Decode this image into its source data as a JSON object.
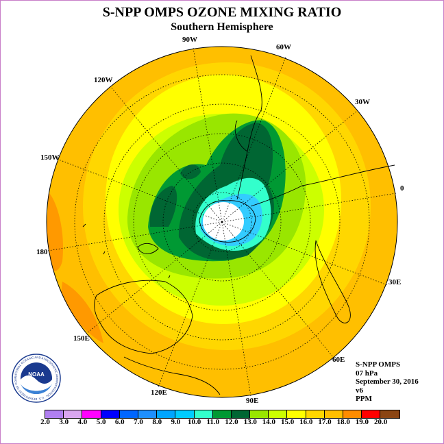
{
  "header": {
    "title": "S-NPP OMPS OZONE MIXING RATIO",
    "subtitle": "Southern Hemisphere"
  },
  "map": {
    "longitude_labels": [
      "0",
      "30E",
      "60E",
      "90E",
      "120E",
      "150E",
      "180",
      "150W",
      "120W",
      "90W",
      "60W",
      "30W"
    ],
    "fill_levels": [
      "#ffbf00",
      "#ffd700",
      "#ffff00",
      "#ccff00",
      "#99e600",
      "#009933",
      "#006633",
      "#33ffcc",
      "#33ccff",
      "#0099ff",
      "#ffffff"
    ]
  },
  "info": {
    "instrument": "S-NPP OMPS",
    "level": "07 hPa",
    "date": "September 30, 2016",
    "version": "v6",
    "units": "PPM"
  },
  "colorbar": {
    "labels": [
      "2.0",
      "3.0",
      "4.0",
      "5.0",
      "6.0",
      "7.0",
      "8.0",
      "9.0",
      "10.0",
      "11.0",
      "12.0",
      "13.0",
      "14.0",
      "15.0",
      "16.0",
      "17.0",
      "18.0",
      "19.0",
      "20.0"
    ],
    "colors": [
      "#b07ff0",
      "#d9a6f0",
      "#ff00ff",
      "#0000ff",
      "#0066ff",
      "#1e90ff",
      "#00a5ff",
      "#00ccff",
      "#33ffcc",
      "#009933",
      "#006633",
      "#99e600",
      "#ccff00",
      "#ffff00",
      "#ffd700",
      "#ffbf00",
      "#ff8c00",
      "#ff0000",
      "#8b4513"
    ]
  },
  "logo": {
    "text": "NOAA",
    "ring_text": "NATIONAL OCEANIC AND ATMOSPHERIC ADMINISTRATION · U.S. DEPARTMENT OF COMMERCE"
  }
}
